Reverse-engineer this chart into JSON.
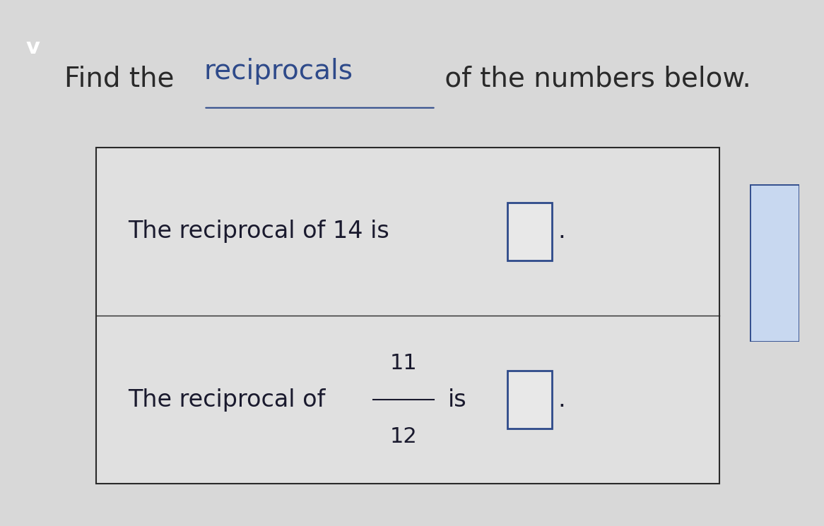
{
  "background_color": "#d8d8d8",
  "title_text_normal": "Find the ",
  "title_text_link": "reciprocals",
  "title_text_end": " of the numbers below.",
  "title_fontsize": 28,
  "title_color": "#2a2a2a",
  "link_color": "#2e4a8a",
  "box_bg": "#e8e8e8",
  "box_edge_color": "#2a2a2a",
  "line1_prefix": "The reciprocal of 14 is ",
  "line2_prefix": "The reciprocal of ",
  "line2_frac_num": "11",
  "line2_frac_den": "12",
  "line2_suffix": " is ",
  "text_fontsize": 24,
  "text_color": "#1a1a2e",
  "input_box_color": "#2e4a8a",
  "chevron_color": "#5b9bd5"
}
